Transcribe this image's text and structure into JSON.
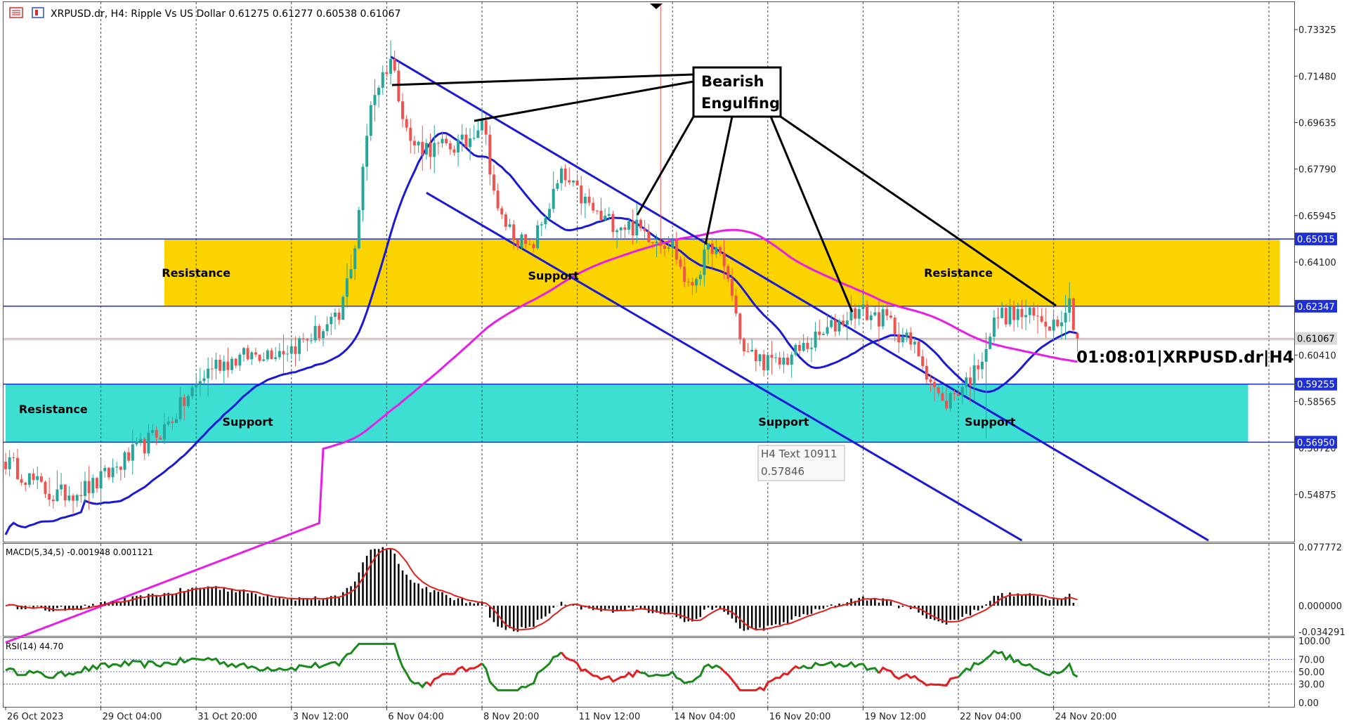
{
  "header": {
    "title": "XRPUSD.dr, H4:  Ripple Vs US Dollar   0.61275 0.61277 0.60538 0.61067"
  },
  "timer_label": "01:08:01|XRPUSD.dr|H4",
  "tooltip": {
    "line1": "H4 Text 10911",
    "line2": "0.57846"
  },
  "annotations": {
    "bearish_line1": "Bearish",
    "bearish_line2": "Engulfing",
    "zone_labels": [
      {
        "text": "Resistance",
        "zone": "upper",
        "bar": 48
      },
      {
        "text": "Support",
        "zone": "upper",
        "bar": 138
      },
      {
        "text": "Resistance",
        "zone": "upper",
        "bar": 240
      },
      {
        "text": "Resistance",
        "zone": "lower",
        "bar": 12
      },
      {
        "text": "Support",
        "zone": "lower",
        "bar": 61
      },
      {
        "text": "Support",
        "zone": "lower",
        "bar": 196
      },
      {
        "text": "Support",
        "zone": "lower",
        "bar": 248
      }
    ]
  },
  "colors": {
    "bull": "#26a69a",
    "bear": "#ef5350",
    "ma_fast": "#1a1ad6",
    "ma_slow": "#e81ee8",
    "zone_res": "#fbd400",
    "zone_sup": "#3ddfd3",
    "level_line": "#1f2fd6",
    "macd_signal": "#e0201c",
    "rsi_green": "#1a8a1a",
    "rsi_red": "#e21e1e"
  },
  "chart_data": {
    "type": "candlestick",
    "symbol": "XRPUSD.dr",
    "timeframe": "H4",
    "ohlc_current": {
      "open": 0.61275,
      "high": 0.61277,
      "low": 0.60538,
      "close": 0.61067
    },
    "x_ticks": [
      {
        "label": "26 Oct 2023",
        "bar": 0
      },
      {
        "label": "29 Oct 04:00",
        "bar": 24
      },
      {
        "label": "31 Oct 20:00",
        "bar": 48
      },
      {
        "label": "3 Nov 12:00",
        "bar": 72
      },
      {
        "label": "6 Nov 04:00",
        "bar": 96
      },
      {
        "label": "8 Nov 20:00",
        "bar": 120
      },
      {
        "label": "11 Nov 12:00",
        "bar": 144
      },
      {
        "label": "14 Nov 04:00",
        "bar": 168
      },
      {
        "label": "16 Nov 20:00",
        "bar": 192
      },
      {
        "label": "19 Nov 12:00",
        "bar": 216
      },
      {
        "label": "22 Nov 04:00",
        "bar": 240
      },
      {
        "label": "24 Nov 20:00",
        "bar": 264
      }
    ],
    "price_axis": {
      "min": 0.53,
      "max": 0.745,
      "ticks": [
        "0.73325",
        "0.71480",
        "0.69635",
        "0.67790",
        "0.65945",
        "0.64100",
        "0.60410",
        "0.58565",
        "0.56720",
        "0.54875"
      ]
    },
    "levels": [
      {
        "value": 0.65015,
        "label": "0.65015"
      },
      {
        "value": 0.62347,
        "label": "0.62347"
      },
      {
        "value": 0.61067,
        "label": "0.61067",
        "role": "current"
      },
      {
        "value": 0.59255,
        "label": "0.59255"
      },
      {
        "value": 0.5695,
        "label": "0.56950"
      }
    ],
    "zones": [
      {
        "name": "resistance-zone",
        "from": 0.62347,
        "to": 0.65015,
        "start_bar": 40,
        "end_bar": 321
      },
      {
        "name": "support-zone",
        "from": 0.5695,
        "to": 0.59255,
        "start_bar": 0,
        "end_bar": 313
      }
    ],
    "trendlines": [
      {
        "name": "channel-upper",
        "bar1": 97,
        "price1": 0.7225,
        "bar2": 303,
        "price2": 0.5305
      },
      {
        "name": "channel-lower",
        "bar1": 106,
        "price1": 0.6685,
        "bar2": 256,
        "price2": 0.5305
      }
    ],
    "macd": {
      "label": "MACD(5,34,5) -0.001948 0.001121",
      "min": -0.04,
      "max": 0.082,
      "ticks": [
        "0.077772",
        "0.000000",
        "-0.034291"
      ]
    },
    "rsi": {
      "label": "RSI(14) 44.70",
      "ticks": [
        "100.00",
        "70.00",
        "50.00",
        "30.00",
        "0.00"
      ],
      "levels": [
        70,
        50,
        30
      ]
    },
    "bars": 271,
    "key_points": [
      {
        "bar": 0,
        "price": 0.562
      },
      {
        "bar": 12,
        "price": 0.548
      },
      {
        "bar": 22,
        "price": 0.552
      },
      {
        "bar": 40,
        "price": 0.575
      },
      {
        "bar": 52,
        "price": 0.6
      },
      {
        "bar": 64,
        "price": 0.605
      },
      {
        "bar": 72,
        "price": 0.607
      },
      {
        "bar": 84,
        "price": 0.618
      },
      {
        "bar": 88,
        "price": 0.648
      },
      {
        "bar": 92,
        "price": 0.705
      },
      {
        "bar": 97,
        "price": 0.722
      },
      {
        "bar": 102,
        "price": 0.688
      },
      {
        "bar": 108,
        "price": 0.686
      },
      {
        "bar": 116,
        "price": 0.688
      },
      {
        "bar": 120,
        "price": 0.699
      },
      {
        "bar": 124,
        "price": 0.66
      },
      {
        "bar": 132,
        "price": 0.645
      },
      {
        "bar": 140,
        "price": 0.675
      },
      {
        "bar": 150,
        "price": 0.658
      },
      {
        "bar": 158,
        "price": 0.655
      },
      {
        "bar": 168,
        "price": 0.648
      },
      {
        "bar": 172,
        "price": 0.63
      },
      {
        "bar": 178,
        "price": 0.648
      },
      {
        "bar": 182,
        "price": 0.635
      },
      {
        "bar": 186,
        "price": 0.605
      },
      {
        "bar": 194,
        "price": 0.6
      },
      {
        "bar": 204,
        "price": 0.61
      },
      {
        "bar": 214,
        "price": 0.622
      },
      {
        "bar": 222,
        "price": 0.618
      },
      {
        "bar": 230,
        "price": 0.605
      },
      {
        "bar": 236,
        "price": 0.584
      },
      {
        "bar": 244,
        "price": 0.597
      },
      {
        "bar": 250,
        "price": 0.62
      },
      {
        "bar": 256,
        "price": 0.62
      },
      {
        "bar": 264,
        "price": 0.617
      },
      {
        "bar": 268,
        "price": 0.625
      },
      {
        "bar": 270,
        "price": 0.6107
      }
    ]
  }
}
